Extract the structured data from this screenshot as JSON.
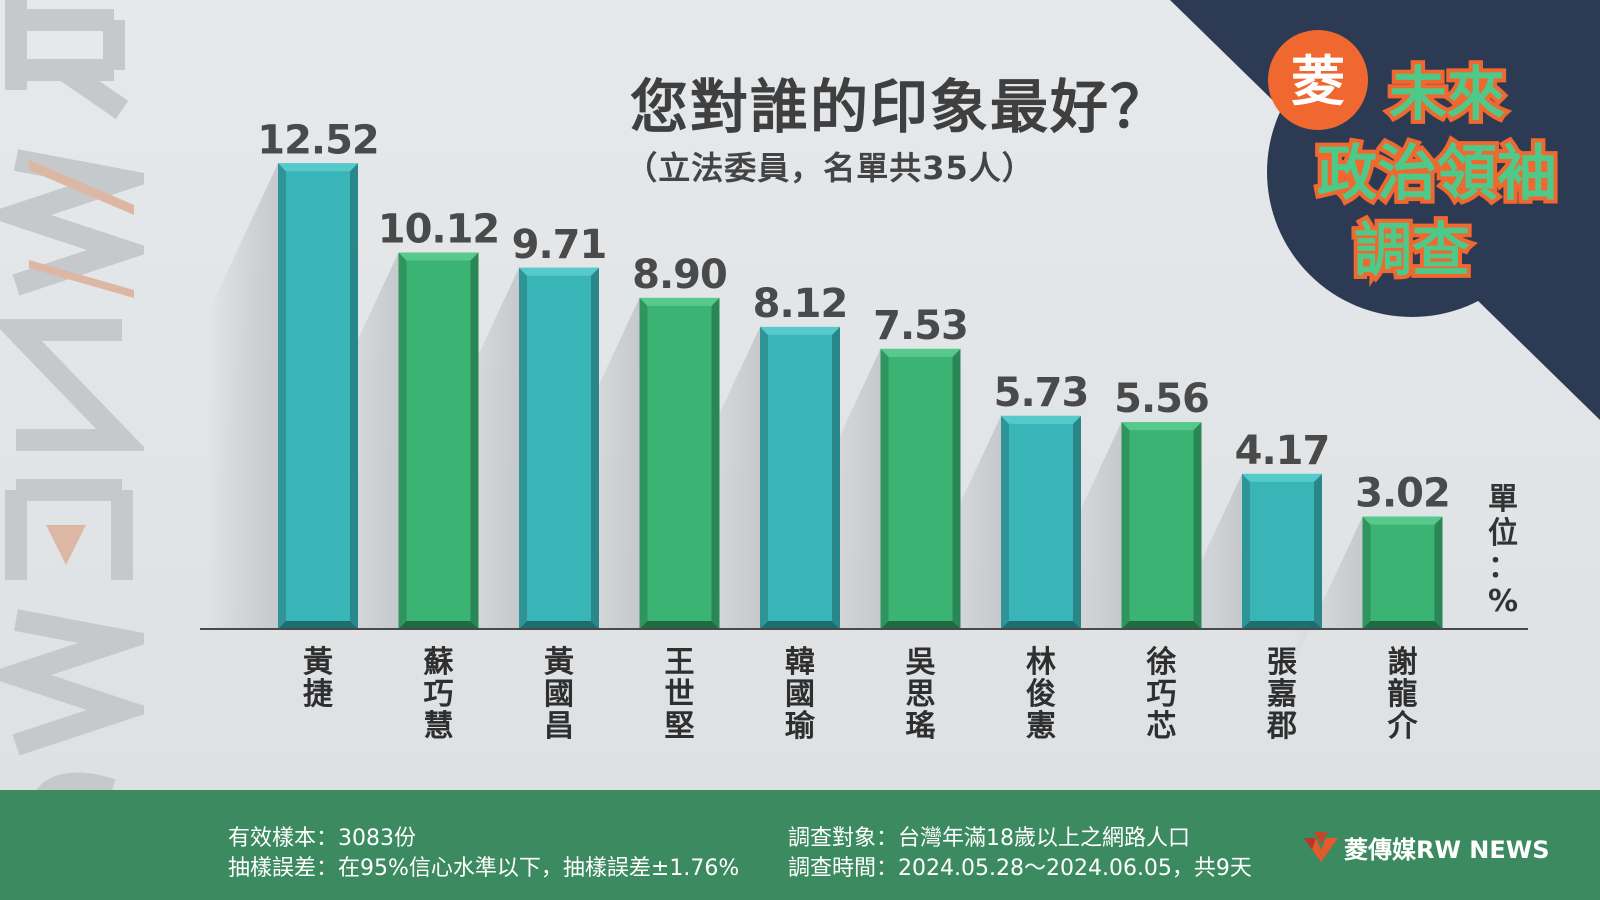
{
  "header": {
    "title": "您對誰的印象最好？",
    "subtitle": "（立法委員，名單共35人）"
  },
  "badge": {
    "logo_char": "菱",
    "line1": "未來",
    "line2": "政治領袖",
    "line3": "調查"
  },
  "watermark": {
    "text": "RW NEWS"
  },
  "unit": {
    "chars": [
      "單",
      "位",
      "：",
      "%"
    ]
  },
  "colors": {
    "teal": "#3ab5b7",
    "green": "#3bb373",
    "navy": "#2c3b53",
    "orange": "#f0682f",
    "footer": "#3c8a5f"
  },
  "chart_data": {
    "type": "bar",
    "title": "您對誰的印象最好？",
    "subtitle": "（立法委員，名單共35人）",
    "unit": "%",
    "categories": [
      "黃捷",
      "蘇巧慧",
      "黃國昌",
      "王世堅",
      "韓國瑜",
      "吳思瑤",
      "林俊憲",
      "徐巧芯",
      "張嘉郡",
      "謝龍介"
    ],
    "values": [
      12.52,
      10.12,
      9.71,
      8.9,
      8.12,
      7.53,
      5.73,
      5.56,
      4.17,
      3.02
    ],
    "value_labels": [
      "12.52",
      "10.12",
      "9.71",
      "8.90",
      "8.12",
      "7.53",
      "5.73",
      "5.56",
      "4.17",
      "3.02"
    ],
    "bar_colors": [
      "teal",
      "green",
      "teal",
      "green",
      "teal",
      "green",
      "teal",
      "green",
      "teal",
      "green"
    ],
    "ylim": [
      0,
      14
    ]
  },
  "footer": {
    "sample": "有效樣本：3083份",
    "error": "抽樣誤差：在95%信心水準以下，抽樣誤差±1.76%",
    "target": "調查對象：台灣年滿18歲以上之網路人口",
    "period": "調查時間：2024.05.28～2024.06.05，共9天",
    "brand": "菱傳媒RW NEWS"
  }
}
